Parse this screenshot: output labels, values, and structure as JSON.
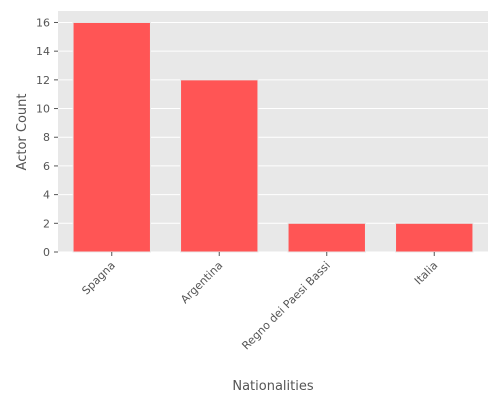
{
  "chart_data": {
    "type": "bar",
    "categories": [
      "Spagna",
      "Argentina",
      "Regno dei Paesi Bassi",
      "Italia"
    ],
    "values": [
      16,
      12,
      2,
      2
    ],
    "title": "",
    "xlabel": "Nationalities",
    "ylabel": "Actor Count",
    "ylim": [
      0,
      16.8
    ],
    "yticks": [
      0,
      2,
      4,
      6,
      8,
      10,
      12,
      14,
      16
    ],
    "grid": true,
    "colors": {
      "bar": "#ff5555",
      "bar_edge": "#e8e8e8",
      "plot_bg": "#e8e8e8",
      "grid": "#ffffff",
      "text": "#555555"
    }
  }
}
